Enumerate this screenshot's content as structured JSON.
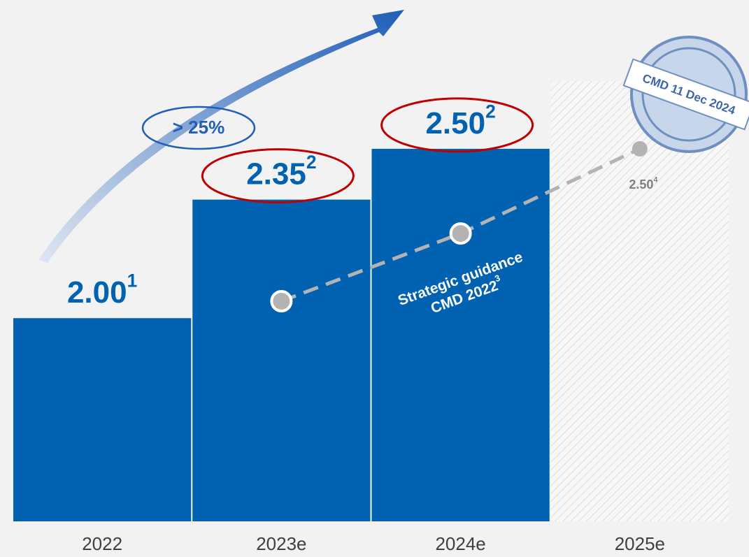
{
  "chart_data": {
    "type": "bar",
    "categories": [
      "2022",
      "2023e",
      "2024e",
      "2025e"
    ],
    "ylim": [
      1.4,
      2.7
    ],
    "series": [
      {
        "color": "#0062b1",
        "values": [
          2.0,
          2.35,
          2.5,
          2.7
        ],
        "value_labels": [
          "2.00",
          "2.35",
          "2.50",
          null
        ],
        "footnotes": [
          "1",
          "2",
          "2",
          null
        ],
        "hatched": [
          false,
          false,
          false,
          true
        ]
      }
    ],
    "guidance": {
      "type": "line",
      "label_lines": [
        "Strategic guidance",
        "CMD 2022"
      ],
      "footnote": "3",
      "color": "#b3b3b3",
      "values": [
        null,
        2.05,
        2.25,
        2.5
      ],
      "value_labels": [
        null,
        null,
        null,
        "2.50"
      ],
      "value_footnotes": [
        null,
        null,
        null,
        "4"
      ]
    },
    "annotations": {
      "growth": "> 25%",
      "stamp": "CMD 11 Dec 2024"
    }
  }
}
